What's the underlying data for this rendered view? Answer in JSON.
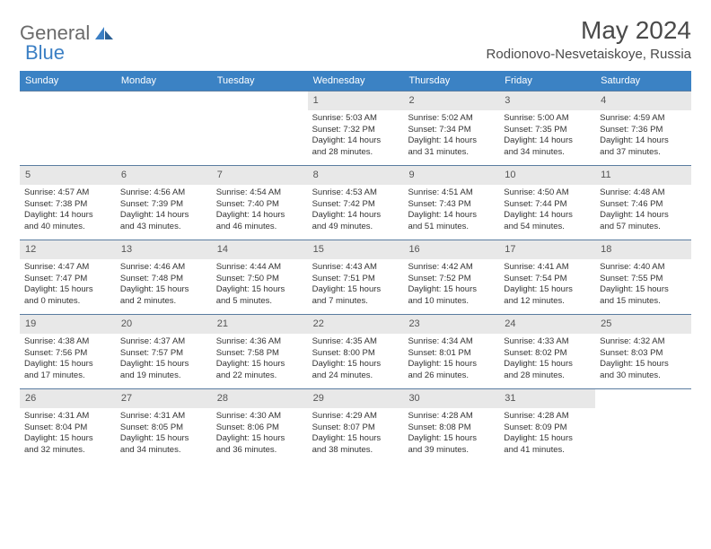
{
  "logo": {
    "text1": "General",
    "text2": "Blue"
  },
  "title": "May 2024",
  "location": "Rodionovo-Nesvetaiskoye, Russia",
  "colors": {
    "header_bg": "#3b82c4",
    "header_text": "#ffffff",
    "daynum_bg": "#e8e8e8",
    "border": "#5a7ca0",
    "logo_gray": "#6b6b6b",
    "logo_blue": "#3b7fc4"
  },
  "weekdays": [
    "Sunday",
    "Monday",
    "Tuesday",
    "Wednesday",
    "Thursday",
    "Friday",
    "Saturday"
  ],
  "weeks": [
    [
      null,
      null,
      null,
      {
        "n": "1",
        "sr": "Sunrise: 5:03 AM",
        "ss": "Sunset: 7:32 PM",
        "d1": "Daylight: 14 hours",
        "d2": "and 28 minutes."
      },
      {
        "n": "2",
        "sr": "Sunrise: 5:02 AM",
        "ss": "Sunset: 7:34 PM",
        "d1": "Daylight: 14 hours",
        "d2": "and 31 minutes."
      },
      {
        "n": "3",
        "sr": "Sunrise: 5:00 AM",
        "ss": "Sunset: 7:35 PM",
        "d1": "Daylight: 14 hours",
        "d2": "and 34 minutes."
      },
      {
        "n": "4",
        "sr": "Sunrise: 4:59 AM",
        "ss": "Sunset: 7:36 PM",
        "d1": "Daylight: 14 hours",
        "d2": "and 37 minutes."
      }
    ],
    [
      {
        "n": "5",
        "sr": "Sunrise: 4:57 AM",
        "ss": "Sunset: 7:38 PM",
        "d1": "Daylight: 14 hours",
        "d2": "and 40 minutes."
      },
      {
        "n": "6",
        "sr": "Sunrise: 4:56 AM",
        "ss": "Sunset: 7:39 PM",
        "d1": "Daylight: 14 hours",
        "d2": "and 43 minutes."
      },
      {
        "n": "7",
        "sr": "Sunrise: 4:54 AM",
        "ss": "Sunset: 7:40 PM",
        "d1": "Daylight: 14 hours",
        "d2": "and 46 minutes."
      },
      {
        "n": "8",
        "sr": "Sunrise: 4:53 AM",
        "ss": "Sunset: 7:42 PM",
        "d1": "Daylight: 14 hours",
        "d2": "and 49 minutes."
      },
      {
        "n": "9",
        "sr": "Sunrise: 4:51 AM",
        "ss": "Sunset: 7:43 PM",
        "d1": "Daylight: 14 hours",
        "d2": "and 51 minutes."
      },
      {
        "n": "10",
        "sr": "Sunrise: 4:50 AM",
        "ss": "Sunset: 7:44 PM",
        "d1": "Daylight: 14 hours",
        "d2": "and 54 minutes."
      },
      {
        "n": "11",
        "sr": "Sunrise: 4:48 AM",
        "ss": "Sunset: 7:46 PM",
        "d1": "Daylight: 14 hours",
        "d2": "and 57 minutes."
      }
    ],
    [
      {
        "n": "12",
        "sr": "Sunrise: 4:47 AM",
        "ss": "Sunset: 7:47 PM",
        "d1": "Daylight: 15 hours",
        "d2": "and 0 minutes."
      },
      {
        "n": "13",
        "sr": "Sunrise: 4:46 AM",
        "ss": "Sunset: 7:48 PM",
        "d1": "Daylight: 15 hours",
        "d2": "and 2 minutes."
      },
      {
        "n": "14",
        "sr": "Sunrise: 4:44 AM",
        "ss": "Sunset: 7:50 PM",
        "d1": "Daylight: 15 hours",
        "d2": "and 5 minutes."
      },
      {
        "n": "15",
        "sr": "Sunrise: 4:43 AM",
        "ss": "Sunset: 7:51 PM",
        "d1": "Daylight: 15 hours",
        "d2": "and 7 minutes."
      },
      {
        "n": "16",
        "sr": "Sunrise: 4:42 AM",
        "ss": "Sunset: 7:52 PM",
        "d1": "Daylight: 15 hours",
        "d2": "and 10 minutes."
      },
      {
        "n": "17",
        "sr": "Sunrise: 4:41 AM",
        "ss": "Sunset: 7:54 PM",
        "d1": "Daylight: 15 hours",
        "d2": "and 12 minutes."
      },
      {
        "n": "18",
        "sr": "Sunrise: 4:40 AM",
        "ss": "Sunset: 7:55 PM",
        "d1": "Daylight: 15 hours",
        "d2": "and 15 minutes."
      }
    ],
    [
      {
        "n": "19",
        "sr": "Sunrise: 4:38 AM",
        "ss": "Sunset: 7:56 PM",
        "d1": "Daylight: 15 hours",
        "d2": "and 17 minutes."
      },
      {
        "n": "20",
        "sr": "Sunrise: 4:37 AM",
        "ss": "Sunset: 7:57 PM",
        "d1": "Daylight: 15 hours",
        "d2": "and 19 minutes."
      },
      {
        "n": "21",
        "sr": "Sunrise: 4:36 AM",
        "ss": "Sunset: 7:58 PM",
        "d1": "Daylight: 15 hours",
        "d2": "and 22 minutes."
      },
      {
        "n": "22",
        "sr": "Sunrise: 4:35 AM",
        "ss": "Sunset: 8:00 PM",
        "d1": "Daylight: 15 hours",
        "d2": "and 24 minutes."
      },
      {
        "n": "23",
        "sr": "Sunrise: 4:34 AM",
        "ss": "Sunset: 8:01 PM",
        "d1": "Daylight: 15 hours",
        "d2": "and 26 minutes."
      },
      {
        "n": "24",
        "sr": "Sunrise: 4:33 AM",
        "ss": "Sunset: 8:02 PM",
        "d1": "Daylight: 15 hours",
        "d2": "and 28 minutes."
      },
      {
        "n": "25",
        "sr": "Sunrise: 4:32 AM",
        "ss": "Sunset: 8:03 PM",
        "d1": "Daylight: 15 hours",
        "d2": "and 30 minutes."
      }
    ],
    [
      {
        "n": "26",
        "sr": "Sunrise: 4:31 AM",
        "ss": "Sunset: 8:04 PM",
        "d1": "Daylight: 15 hours",
        "d2": "and 32 minutes."
      },
      {
        "n": "27",
        "sr": "Sunrise: 4:31 AM",
        "ss": "Sunset: 8:05 PM",
        "d1": "Daylight: 15 hours",
        "d2": "and 34 minutes."
      },
      {
        "n": "28",
        "sr": "Sunrise: 4:30 AM",
        "ss": "Sunset: 8:06 PM",
        "d1": "Daylight: 15 hours",
        "d2": "and 36 minutes."
      },
      {
        "n": "29",
        "sr": "Sunrise: 4:29 AM",
        "ss": "Sunset: 8:07 PM",
        "d1": "Daylight: 15 hours",
        "d2": "and 38 minutes."
      },
      {
        "n": "30",
        "sr": "Sunrise: 4:28 AM",
        "ss": "Sunset: 8:08 PM",
        "d1": "Daylight: 15 hours",
        "d2": "and 39 minutes."
      },
      {
        "n": "31",
        "sr": "Sunrise: 4:28 AM",
        "ss": "Sunset: 8:09 PM",
        "d1": "Daylight: 15 hours",
        "d2": "and 41 minutes."
      },
      null
    ]
  ]
}
